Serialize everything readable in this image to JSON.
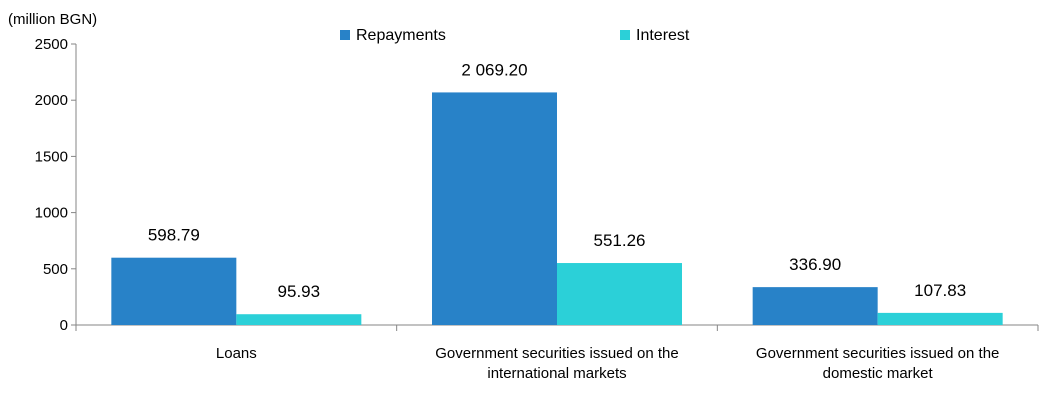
{
  "chart_data": {
    "type": "bar",
    "unit_label": "(million BGN)",
    "categories": [
      [
        "Loans"
      ],
      [
        "Government securities issued on the",
        "international markets"
      ],
      [
        "Government securities issued on the",
        "domestic market"
      ]
    ],
    "series": [
      {
        "name": "Repayments",
        "color": "#2882C8",
        "values": [
          598.79,
          2069.2,
          336.9
        ],
        "labels": [
          "598.79",
          "2 069.20",
          "336.90"
        ]
      },
      {
        "name": "Interest",
        "color": "#2BD0D8",
        "values": [
          95.93,
          551.26,
          107.83
        ],
        "labels": [
          "95.93",
          "551.26",
          "107.83"
        ]
      }
    ],
    "ylim": [
      0,
      2500
    ],
    "yticks": [
      0,
      500,
      1000,
      1500,
      2000,
      2500
    ],
    "grid": false,
    "legend_position": "top"
  }
}
